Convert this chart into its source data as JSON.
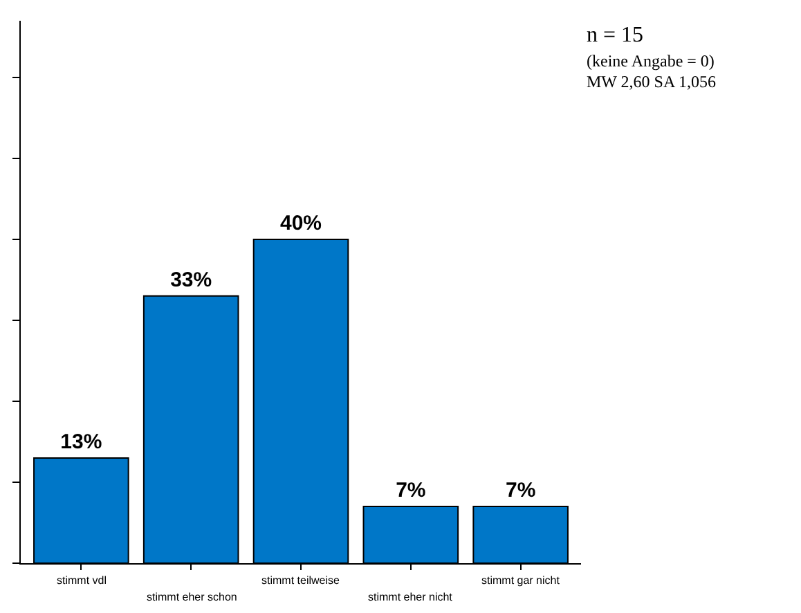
{
  "chart_data": {
    "type": "bar",
    "categories": [
      "stimmt vdl",
      "stimmt eher schon",
      "stimmt teilweise",
      "stimmt eher nicht",
      "stimmt gar nicht"
    ],
    "values": [
      13,
      33,
      40,
      7,
      7
    ],
    "value_labels": [
      "13%",
      "33%",
      "40%",
      "7%",
      "7%"
    ],
    "color": "#0077c8",
    "ylim": [
      0,
      67
    ],
    "yticks": [
      {
        "value": 0,
        "label": null
      },
      {
        "value": 10,
        "label": null
      },
      {
        "value": 20,
        "label": null
      },
      {
        "value": 30,
        "label": null
      },
      {
        "value": 40,
        "label": null
      },
      {
        "value": 50,
        "label": null
      },
      {
        "value": 60,
        "label": null
      }
    ],
    "tick_labels": "x",
    "legend": false,
    "annotations": [
      "n = 15",
      "(keine Angabe = 0)",
      "MW 2,60 SA 1,056"
    ]
  }
}
